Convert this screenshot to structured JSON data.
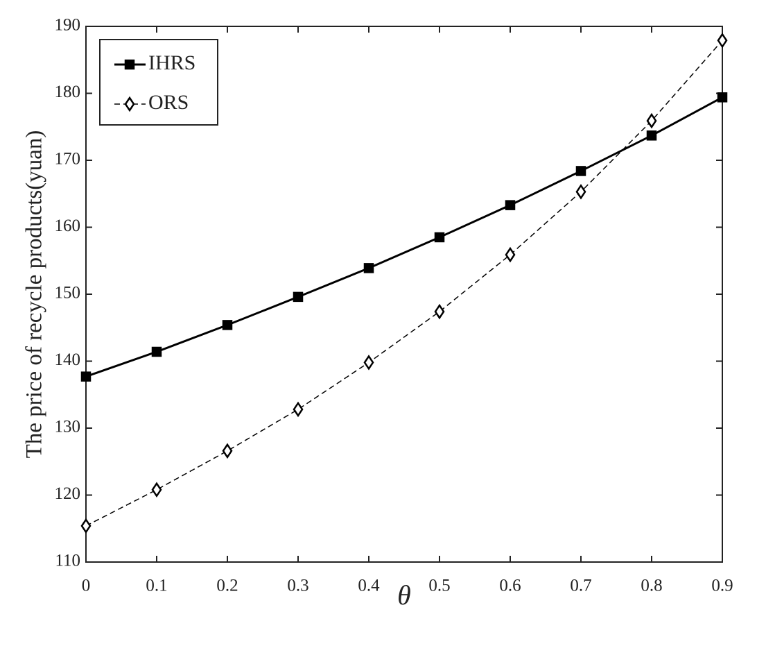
{
  "chart_data": {
    "type": "line",
    "x_label": "θ",
    "y_label": "The price of recycle products(yuan)",
    "x": [
      0,
      0.1,
      0.2,
      0.3,
      0.4,
      0.5,
      0.6,
      0.7,
      0.8,
      0.9
    ],
    "series": [
      {
        "name": "IHRS",
        "color": "#000000",
        "marker": "square",
        "linestyle": "solid",
        "values": [
          137.7,
          141.4,
          145.4,
          149.6,
          153.9,
          158.5,
          163.3,
          168.4,
          173.7,
          179.4
        ]
      },
      {
        "name": "ORS",
        "color": "#000000",
        "marker": "diamond",
        "linestyle": "dashed",
        "values": [
          115.4,
          120.8,
          126.6,
          132.8,
          139.8,
          147.4,
          155.9,
          165.3,
          175.9,
          187.9
        ]
      }
    ],
    "xlim": [
      0,
      0.9
    ],
    "xticks": [
      0,
      0.1,
      0.2,
      0.3,
      0.4,
      0.5,
      0.6,
      0.7,
      0.8,
      0.9
    ],
    "ylim": [
      110,
      190
    ],
    "yticks": [
      110,
      120,
      130,
      140,
      150,
      160,
      170,
      180,
      190
    ],
    "grid": false,
    "legend": "upper left"
  }
}
